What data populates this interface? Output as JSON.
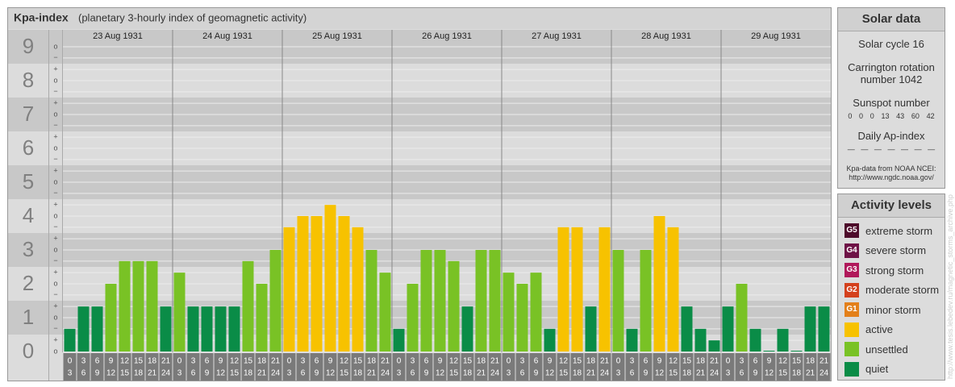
{
  "chart_data": {
    "type": "bar",
    "title": "Kpa-index",
    "subtitle": "(planetary 3-hourly index of geomagnetic activity)",
    "categories": [
      "23 Aug 1931",
      "24 Aug 1931",
      "25 Aug 1931",
      "26 Aug 1931",
      "27 Aug 1931",
      "28 Aug 1931",
      "29 Aug 1931"
    ],
    "hour_ranges": [
      [
        0,
        3
      ],
      [
        3,
        6
      ],
      [
        6,
        9
      ],
      [
        9,
        12
      ],
      [
        12,
        15
      ],
      [
        15,
        18
      ],
      [
        18,
        21
      ],
      [
        21,
        24
      ]
    ],
    "values": [
      [
        0.67,
        1.33,
        1.33,
        2,
        2.67,
        2.67,
        2.67,
        1.33
      ],
      [
        2.33,
        1.33,
        1.33,
        1.33,
        1.33,
        2.67,
        2,
        3
      ],
      [
        3.67,
        4,
        4,
        4.33,
        4,
        3.67,
        3,
        2.33
      ],
      [
        0.67,
        2,
        3,
        3,
        2.67,
        1.33,
        3,
        3
      ],
      [
        2.33,
        2,
        2.33,
        0.67,
        3.67,
        3.67,
        1.33,
        3.67
      ],
      [
        3,
        0.67,
        3,
        4,
        3.67,
        1.33,
        0.67,
        0.33
      ],
      [
        1.33,
        2,
        0.67,
        0,
        0.67,
        0,
        1.33,
        1.33
      ]
    ],
    "colors": [
      [
        "#0a8c47",
        "#0a8c47",
        "#0a8c47",
        "#79c225",
        "#79c225",
        "#79c225",
        "#79c225",
        "#0a8c47"
      ],
      [
        "#79c225",
        "#0a8c47",
        "#0a8c47",
        "#0a8c47",
        "#0a8c47",
        "#79c225",
        "#79c225",
        "#79c225"
      ],
      [
        "#f7c200",
        "#f7c200",
        "#f7c200",
        "#f7c200",
        "#f7c200",
        "#f7c200",
        "#79c225",
        "#79c225"
      ],
      [
        "#0a8c47",
        "#79c225",
        "#79c225",
        "#79c225",
        "#79c225",
        "#0a8c47",
        "#79c225",
        "#79c225"
      ],
      [
        "#79c225",
        "#79c225",
        "#79c225",
        "#0a8c47",
        "#f7c200",
        "#f7c200",
        "#0a8c47",
        "#f7c200"
      ],
      [
        "#79c225",
        "#0a8c47",
        "#79c225",
        "#f7c200",
        "#f7c200",
        "#0a8c47",
        "#0a8c47",
        "#0a8c47"
      ],
      [
        "#0a8c47",
        "#79c225",
        "#0a8c47",
        "#0a8c47",
        "#0a8c47",
        "#0a8c47",
        "#0a8c47",
        "#0a8c47"
      ]
    ],
    "ylim": [
      -0.5,
      9.5
    ],
    "yticks": [
      0,
      1,
      2,
      3,
      4,
      5,
      6,
      7,
      8,
      9
    ],
    "yticks_minor": [
      {
        "value": 0,
        "label": "o"
      },
      {
        "value": 0.33,
        "label": "+"
      },
      {
        "value": 0.67,
        "label": "−"
      },
      {
        "value": 1,
        "label": "o"
      },
      {
        "value": 1.33,
        "label": "+"
      },
      {
        "value": 1.67,
        "label": "−"
      },
      {
        "value": 2,
        "label": "o"
      },
      {
        "value": 2.33,
        "label": "+"
      },
      {
        "value": 2.67,
        "label": "−"
      },
      {
        "value": 3,
        "label": "o"
      },
      {
        "value": 3.33,
        "label": "+"
      },
      {
        "value": 3.67,
        "label": "−"
      },
      {
        "value": 4,
        "label": "o"
      },
      {
        "value": 4.33,
        "label": "+"
      },
      {
        "value": 4.67,
        "label": "−"
      },
      {
        "value": 5,
        "label": "o"
      },
      {
        "value": 5.33,
        "label": "+"
      },
      {
        "value": 5.67,
        "label": "−"
      },
      {
        "value": 6,
        "label": "o"
      },
      {
        "value": 6.33,
        "label": "+"
      },
      {
        "value": 6.67,
        "label": "−"
      },
      {
        "value": 7,
        "label": "o"
      },
      {
        "value": 7.33,
        "label": "+"
      },
      {
        "value": 7.67,
        "label": "−"
      },
      {
        "value": 8,
        "label": "o"
      },
      {
        "value": 8.33,
        "label": "+"
      },
      {
        "value": 8.67,
        "label": "−"
      },
      {
        "value": 9,
        "label": "o"
      }
    ],
    "band_colors": [
      "#dcdcdc",
      "#c8c8c8"
    ],
    "grid": true
  },
  "solar_data": {
    "title": "Solar data",
    "cycle": "Solar cycle 16",
    "carrington": "Carrington rotation number 1042",
    "sunspot_title": "Sunspot number",
    "sunspot": [
      0,
      0,
      0,
      13,
      43,
      60,
      42
    ],
    "ap_title": "Daily Ap-index",
    "ap": [
      "—",
      "—",
      "—",
      "—",
      "—",
      "—",
      "—"
    ],
    "source": "Kpa-data from NOAA NCEI:",
    "source_url": "http://www.ngdc.noaa.gov/"
  },
  "activity_levels": {
    "title": "Activity levels",
    "items": [
      {
        "code": "G5",
        "label": "extreme storm",
        "color": "#4d0a2a"
      },
      {
        "code": "G4",
        "label": "severe storm",
        "color": "#6e1246"
      },
      {
        "code": "G3",
        "label": "strong storm",
        "color": "#b0185a"
      },
      {
        "code": "G2",
        "label": "moderate storm",
        "color": "#d4401c"
      },
      {
        "code": "G1",
        "label": "minor storm",
        "color": "#e3801a"
      },
      {
        "code": null,
        "label": "active",
        "color": "#f7c200"
      },
      {
        "code": null,
        "label": "unsettled",
        "color": "#79c225"
      },
      {
        "code": null,
        "label": "quiet",
        "color": "#0a8c47"
      }
    ]
  },
  "watermark": "http://www.tesis.lebedev.ru/magnetic_storms_archive.php"
}
